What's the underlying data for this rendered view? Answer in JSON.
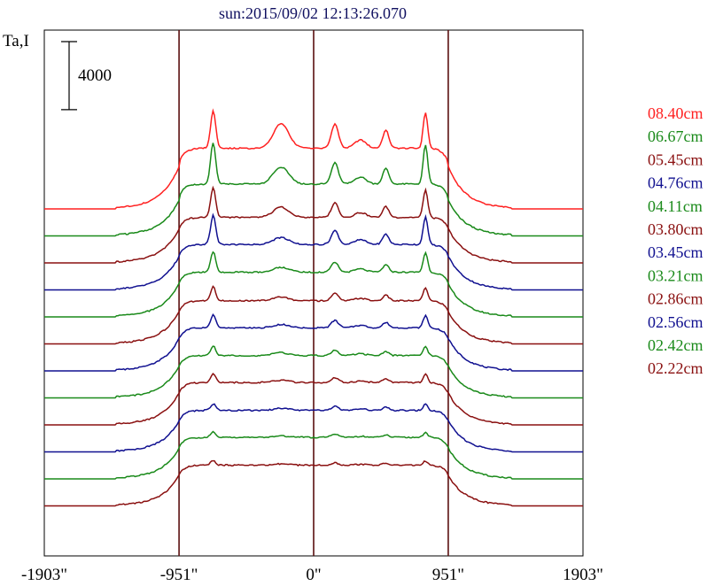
{
  "chart_data": {
    "type": "line",
    "title": "sun:2015/09/02 12:13:26.070",
    "ylabel": "Ta,I",
    "scale_bar_label": "4000",
    "scale_bar_value": 4000,
    "x_tick_labels": [
      "-1903\"",
      "-951\"",
      "0\"",
      "951\"",
      "1903\""
    ],
    "x_ticks": [
      -1903,
      -951,
      0,
      951,
      1903
    ],
    "vlines": [
      -951,
      0,
      951
    ],
    "xlim": [
      -1903,
      1903
    ],
    "colors": {
      "red": "#ff2020",
      "green": "#1a8a1a",
      "maroon": "#8a1010",
      "navy": "#101090",
      "axis": "#000000",
      "vline": "#5a1010"
    },
    "legend_position": "right",
    "series": [
      {
        "name": "08.40cm",
        "color": "#ff2020",
        "baseline": 0,
        "limb": 6500,
        "disk": 7600,
        "peak_dip": 3500,
        "center": 5000,
        "side_peak": 3000
      },
      {
        "name": "06.67cm",
        "color": "#1a8a1a",
        "baseline": -1300,
        "limb": 5400,
        "disk": 6500,
        "peak_dip": 3800,
        "center": 3500,
        "side_peak": 2600
      },
      {
        "name": "05.45cm",
        "color": "#8a1010",
        "baseline": -2600,
        "limb": 5200,
        "disk": 5700,
        "peak_dip": 2700,
        "center": 2100,
        "side_peak": 1800
      },
      {
        "name": "04.76cm",
        "color": "#101090",
        "baseline": -3900,
        "limb": 5100,
        "disk": 5700,
        "peak_dip": 2700,
        "center": 1400,
        "side_peak": 1700
      },
      {
        "name": "04.11cm",
        "color": "#1a8a1a",
        "baseline": -5100,
        "limb": 5000,
        "disk": 5600,
        "peak_dip": 1900,
        "center": 1000,
        "side_peak": 1200
      },
      {
        "name": "03.80cm",
        "color": "#8a1010",
        "baseline": -6300,
        "limb": 4900,
        "disk": 5400,
        "peak_dip": 1300,
        "center": 800,
        "side_peak": 900
      },
      {
        "name": "03.45cm",
        "color": "#101090",
        "baseline": -7400,
        "limb": 4900,
        "disk": 5400,
        "peak_dip": 1200,
        "center": 700,
        "side_peak": 900
      },
      {
        "name": "03.21cm",
        "color": "#1a8a1a",
        "baseline": -8500,
        "limb": 4800,
        "disk": 5300,
        "peak_dip": 900,
        "center": 600,
        "side_peak": 700
      },
      {
        "name": "02.86cm",
        "color": "#8a1010",
        "baseline": -9400,
        "limb": 4800,
        "disk": 5300,
        "peak_dip": 800,
        "center": 500,
        "side_peak": 600
      },
      {
        "name": "02.56cm",
        "color": "#101090",
        "baseline": -10500,
        "limb": 4700,
        "disk": 5200,
        "peak_dip": 600,
        "center": 400,
        "side_peak": 500
      },
      {
        "name": "02.42cm",
        "color": "#1a8a1a",
        "baseline": -11500,
        "limb": 4700,
        "disk": 5200,
        "peak_dip": 500,
        "center": 300,
        "side_peak": 400
      },
      {
        "name": "02.22cm",
        "color": "#8a1010",
        "baseline": -12300,
        "limb": 4600,
        "disk": 5100,
        "peak_dip": 400,
        "center": 250,
        "side_peak": 300
      }
    ]
  }
}
